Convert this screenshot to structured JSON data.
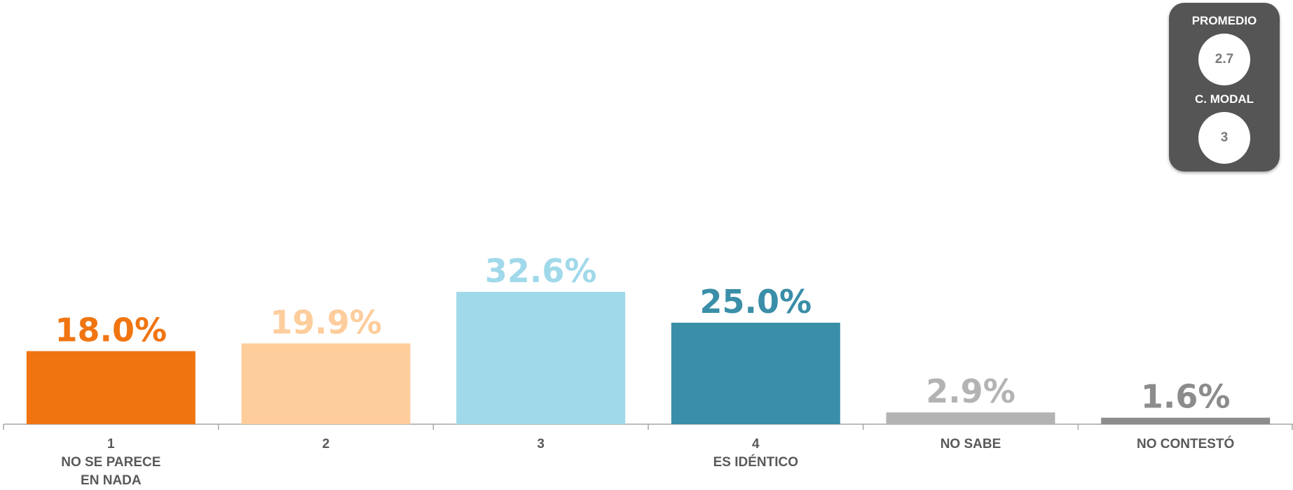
{
  "chart_data": {
    "type": "bar",
    "categories": [
      [
        "1",
        "NO SE PARECE",
        "EN NADA"
      ],
      [
        "2"
      ],
      [
        "3"
      ],
      [
        "4",
        "ES IDÉNTICO"
      ],
      [
        "NO SABE"
      ],
      [
        "NO CONTESTÓ"
      ]
    ],
    "values": [
      18.0,
      19.9,
      32.6,
      25.0,
      2.9,
      1.6
    ],
    "value_labels": [
      "18.0%",
      "19.9%",
      "32.6%",
      "25.0%",
      "2.9%",
      "1.6%"
    ],
    "colors": [
      "#f07511",
      "#fdcd9c",
      "#a0d9ea",
      "#3a8ea8",
      "#b3b3b3",
      "#8c8c8c"
    ],
    "ylim": [
      0,
      35
    ],
    "grid": false,
    "legend": "none"
  },
  "stats": {
    "promedio_label": "PROMEDIO",
    "promedio_value": "2.7",
    "modal_label": "C. MODAL",
    "modal_value": "3"
  }
}
